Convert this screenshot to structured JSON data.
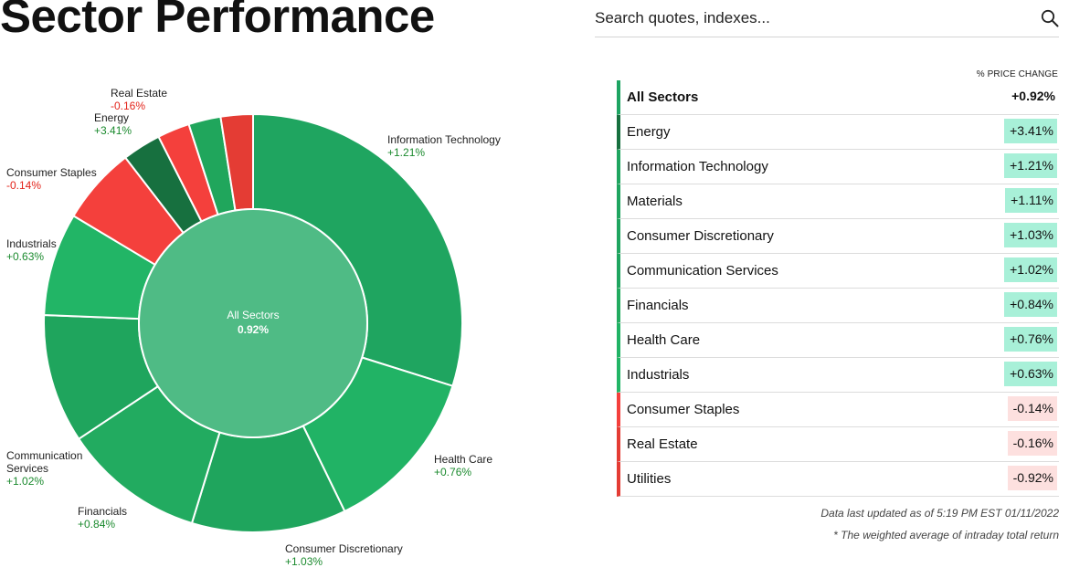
{
  "page": {
    "title": "Sector Performance"
  },
  "search": {
    "placeholder": "Search quotes, indexes..."
  },
  "donut": {
    "center_title": "All Sectors",
    "center_value": "0.92%",
    "segments": [
      {
        "name": "Information Technology",
        "change": "+1.21%",
        "change_value": 1.21,
        "weight": 0.3,
        "color": "#1fa560"
      },
      {
        "name": "Health Care",
        "change": "+0.76%",
        "change_value": 0.76,
        "weight": 0.13,
        "color": "#21b365"
      },
      {
        "name": "Consumer Discretionary",
        "change": "+1.03%",
        "change_value": 1.03,
        "weight": 0.12,
        "color": "#1fa55d"
      },
      {
        "name": "Financials",
        "change": "+0.84%",
        "change_value": 0.84,
        "weight": 0.11,
        "color": "#22ab60"
      },
      {
        "name": "Communication Services",
        "change": "+1.02%",
        "change_value": 1.02,
        "weight": 0.1,
        "color": "#1fa55d"
      },
      {
        "name": "Industrials",
        "change": "+0.63%",
        "change_value": 0.63,
        "weight": 0.08,
        "color": "#22b566"
      },
      {
        "name": "Consumer Staples",
        "change": "-0.14%",
        "change_value": -0.14,
        "weight": 0.06,
        "color": "#f4403c"
      },
      {
        "name": "Energy",
        "change": "+3.41%",
        "change_value": 3.41,
        "weight": 0.03,
        "color": "#17703f"
      },
      {
        "name": "Utilities",
        "change": "-0.92%",
        "change_value": -0.92,
        "weight": 0.025,
        "color": "#f4403c"
      },
      {
        "name": "Materials",
        "change": "+1.11%",
        "change_value": 1.11,
        "weight": 0.025,
        "color": "#20a65c"
      },
      {
        "name": "Real Estate",
        "change": "-0.16%",
        "change_value": -0.16,
        "weight": 0.025,
        "color": "#e43c34"
      }
    ],
    "labels": [
      {
        "name": "Information Technology",
        "change": "+1.21%",
        "positive": true
      },
      {
        "name": "Health Care",
        "change": "+0.76%",
        "positive": true
      },
      {
        "name": "Consumer Discretionary",
        "change": "+1.03%",
        "positive": true
      },
      {
        "name": "Financials",
        "change": "+0.84%",
        "positive": true
      },
      {
        "name": "Communication Services",
        "change": "+1.02%",
        "positive": true,
        "lines": [
          "Communication",
          "Services"
        ]
      },
      {
        "name": "Industrials",
        "change": "+0.63%",
        "positive": true
      },
      {
        "name": "Consumer Staples",
        "change": "-0.14%",
        "positive": false
      },
      {
        "name": "Energy",
        "change": "+3.41%",
        "positive": true
      },
      {
        "name": "Real Estate",
        "change": "-0.16%",
        "positive": false
      }
    ]
  },
  "table": {
    "header": "% PRICE CHANGE",
    "total": {
      "name": "All Sectors",
      "change": "+0.92%"
    },
    "rows": [
      {
        "name": "Energy",
        "change": "+3.41%",
        "positive": true,
        "bar_color": "#17703f"
      },
      {
        "name": "Information Technology",
        "change": "+1.21%",
        "positive": true,
        "bar_color": "#1fa560"
      },
      {
        "name": "Materials",
        "change": "+1.11%",
        "positive": true,
        "bar_color": "#1fa560"
      },
      {
        "name": "Consumer Discretionary",
        "change": "+1.03%",
        "positive": true,
        "bar_color": "#1fa560"
      },
      {
        "name": "Communication Services",
        "change": "+1.02%",
        "positive": true,
        "bar_color": "#1fa560"
      },
      {
        "name": "Financials",
        "change": "+0.84%",
        "positive": true,
        "bar_color": "#22ab60"
      },
      {
        "name": "Health Care",
        "change": "+0.76%",
        "positive": true,
        "bar_color": "#21b365"
      },
      {
        "name": "Industrials",
        "change": "+0.63%",
        "positive": true,
        "bar_color": "#22b566"
      },
      {
        "name": "Consumer Staples",
        "change": "-0.14%",
        "positive": false,
        "bar_color": "#f4403c"
      },
      {
        "name": "Real Estate",
        "change": "-0.16%",
        "positive": false,
        "bar_color": "#e43c34"
      },
      {
        "name": "Utilities",
        "change": "-0.92%",
        "positive": false,
        "bar_color": "#e43c34"
      }
    ]
  },
  "footer": {
    "updated": "Data last updated as of 5:19 PM EST 01/11/2022",
    "note": "* The weighted average of intraday total return"
  },
  "colors": {
    "positive_text": "#1b8a2e",
    "negative_text": "#e3241b",
    "positive_badge": "#a8f0d8",
    "negative_badge": "#fde0df",
    "total_bar": "#1da462",
    "center_fill": "#4fbb85"
  }
}
